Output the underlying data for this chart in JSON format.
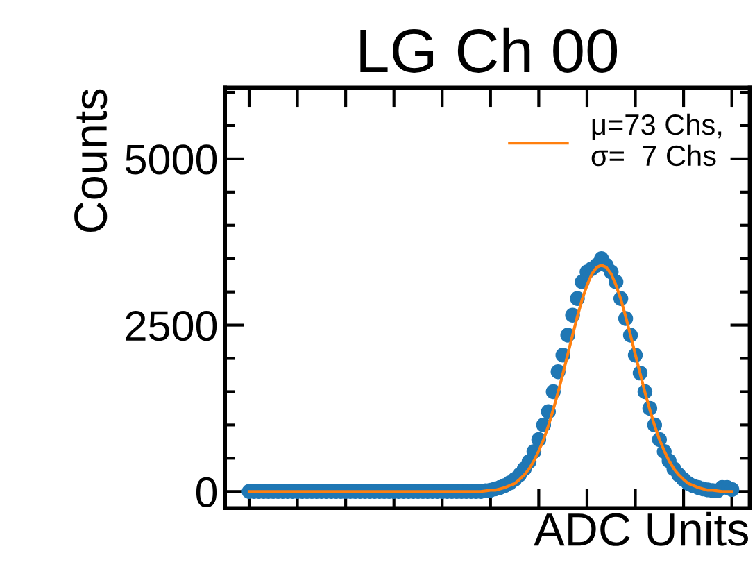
{
  "chart_data": {
    "type": "scatter",
    "title": "LG Ch 00",
    "xlabel": "ADC Units",
    "ylabel": "Counts",
    "categories": [
      null,
      null,
      null,
      null,
      null,
      null,
      null,
      null,
      null,
      null,
      null,
      null,
      null,
      null,
      null,
      null,
      null,
      null,
      null,
      null,
      null,
      null,
      null,
      null,
      null,
      null,
      null,
      null,
      null,
      null,
      null,
      null,
      null,
      null,
      null,
      null,
      null,
      null,
      null,
      null,
      null,
      null,
      null,
      null,
      null,
      null,
      null,
      null,
      null,
      null,
      null,
      null,
      null,
      null,
      null,
      null,
      null,
      null,
      null,
      null,
      null,
      null,
      null,
      null,
      null,
      null,
      null,
      null,
      null,
      null,
      null,
      null,
      null,
      null,
      null,
      null,
      null,
      null,
      null,
      null,
      null,
      null,
      null,
      null,
      null,
      null,
      null,
      null,
      null,
      null,
      null,
      null,
      null,
      null,
      null,
      null,
      null,
      null,
      null,
      null,
      null
    ],
    "ylim": [
      -250,
      6070
    ],
    "yticks": [
      0,
      2500,
      5000
    ],
    "tick_labels": "y",
    "legend": "top right",
    "series": [
      {
        "color": "#1f77b4",
        "marker": "circle",
        "values": [
          0,
          0,
          0,
          0,
          0,
          0,
          0,
          0,
          0,
          0,
          0,
          0,
          0,
          0,
          0,
          0,
          0,
          0,
          0,
          0,
          0,
          0,
          0,
          0,
          0,
          0,
          0,
          0,
          0,
          0,
          0,
          0,
          0,
          0,
          0,
          0,
          0,
          0,
          0,
          0,
          0,
          0,
          0,
          0,
          0,
          0,
          0,
          0,
          0,
          10,
          20,
          40,
          60,
          90,
          130,
          180,
          250,
          340,
          450,
          600,
          780,
          1000,
          1200,
          1500,
          1800,
          2050,
          2350,
          2650,
          2900,
          3150,
          3300,
          3350,
          3400,
          3500,
          3400,
          3300,
          3150,
          2900,
          2600,
          2350,
          2050,
          1780,
          1500,
          1250,
          1000,
          780,
          600,
          460,
          340,
          250,
          180,
          120,
          85,
          60,
          40,
          25,
          15,
          10,
          60,
          60,
          30
        ]
      },
      {
        "type": "line",
        "name": "μ=73 Chs,\nσ=  7 Chs",
        "color": "#ff7f0e",
        "values": [
          0,
          0,
          0,
          0,
          0,
          0,
          0,
          0,
          0,
          0,
          0,
          0,
          0,
          0,
          0,
          0,
          0,
          0,
          0,
          0,
          0,
          0,
          0,
          0,
          0,
          0,
          0,
          0,
          0,
          0,
          0,
          0,
          0,
          0,
          0,
          0,
          0,
          0,
          0,
          0,
          0,
          0,
          0,
          0,
          0,
          0,
          0,
          0,
          0,
          10,
          20,
          20,
          40,
          60,
          90,
          120,
          180,
          250,
          340,
          460,
          610,
          780,
          990,
          1230,
          1490,
          1770,
          2060,
          2350,
          2630,
          2890,
          3100,
          3270,
          3370,
          3400,
          3370,
          3270,
          3100,
          2890,
          2630,
          2350,
          2060,
          1770,
          1490,
          1230,
          990,
          780,
          610,
          460,
          340,
          250,
          180,
          120,
          90,
          60,
          40,
          20,
          20,
          10,
          0,
          0,
          0
        ]
      }
    ]
  }
}
